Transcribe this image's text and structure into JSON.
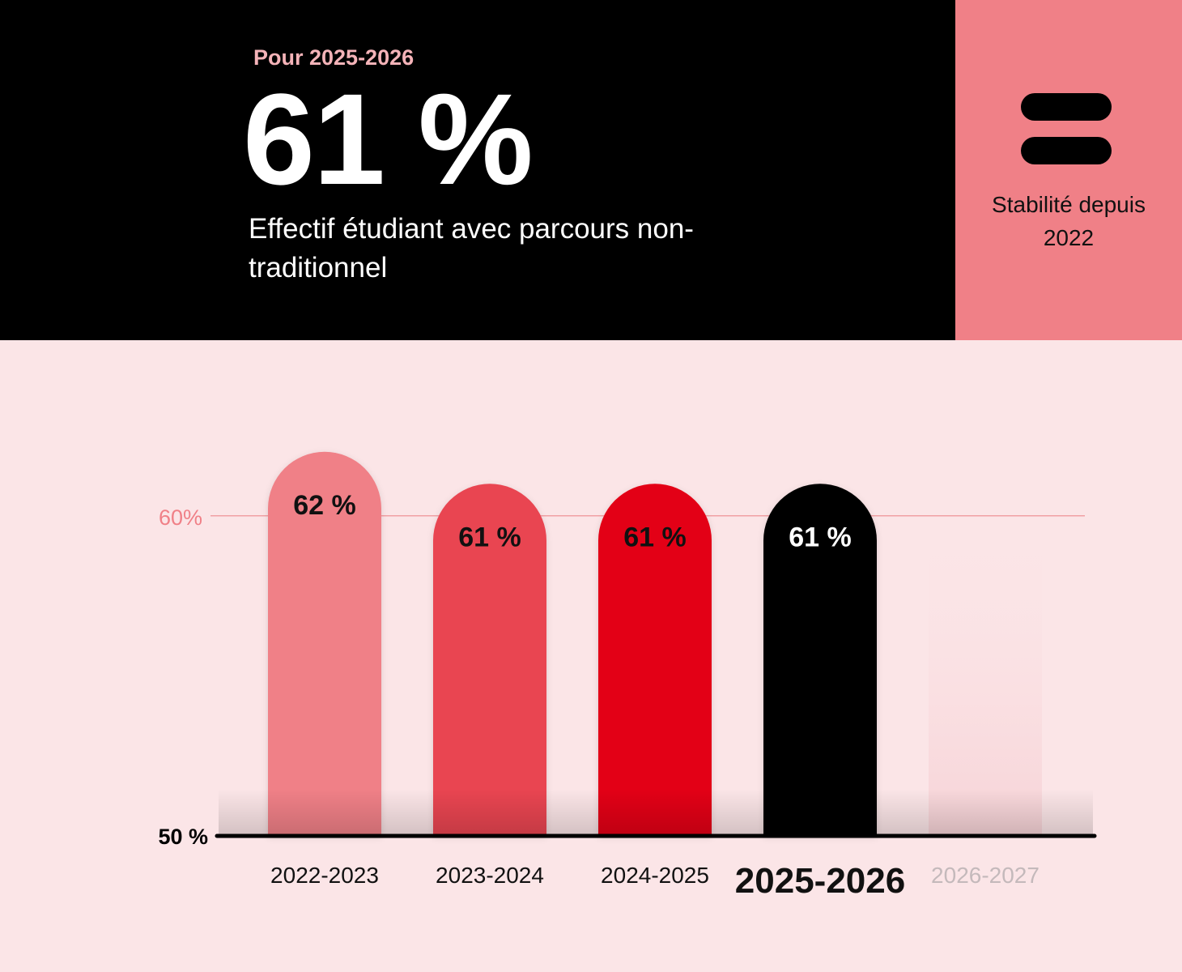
{
  "header": {
    "eyebrow": "Pour 2025-2026",
    "headline": "61 %",
    "subtitle": "Effectif étudiant avec parcours non-traditionnel"
  },
  "side_panel": {
    "icon": "equals-icon",
    "label": "Stabilité depuis 2022"
  },
  "colors": {
    "hero_bg": "#000000",
    "side_bg": "#f08087",
    "chart_bg": "#fbe5e7",
    "eyebrow": "#f4b3b8",
    "gridline_60": "#f0a0a4"
  },
  "chart_data": {
    "type": "bar",
    "categories": [
      "2022-2023",
      "2023-2024",
      "2024-2025",
      "2025-2026",
      "2026-2027"
    ],
    "values": [
      62,
      61,
      61,
      61,
      null
    ],
    "value_labels": [
      "62 %",
      "61 %",
      "61 %",
      "61 %",
      ""
    ],
    "bar_colors": [
      "#f08087",
      "#e94551",
      "#e30613",
      "#000000",
      "#f9dadd"
    ],
    "value_label_colors": [
      "#111111",
      "#111111",
      "#111111",
      "#ffffff",
      ""
    ],
    "highlight_category": "2025-2026",
    "future_category": "2026-2027",
    "ylim": [
      50,
      62.5
    ],
    "yticks": [
      {
        "value": 50,
        "label": "50 %"
      },
      {
        "value": 60,
        "label": "60%"
      }
    ],
    "title": "",
    "xlabel": "",
    "ylabel": "",
    "grid": false
  }
}
